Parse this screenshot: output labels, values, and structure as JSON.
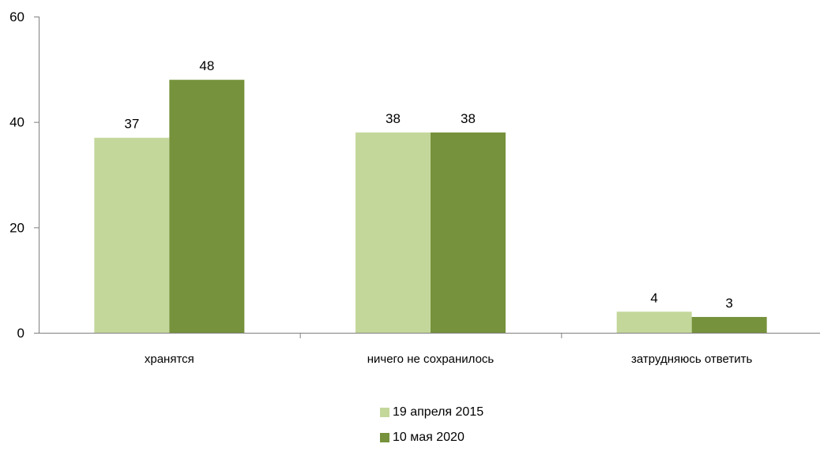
{
  "chart_data": {
    "type": "bar",
    "categories": [
      "хранятся",
      "ничего не сохранилось",
      "затрудняюсь ответить"
    ],
    "series": [
      {
        "name": "19 апреля 2015",
        "values": [
          37,
          38,
          4
        ],
        "labels": [
          "37",
          "38",
          "4"
        ],
        "color": "#c4d79b"
      },
      {
        "name": "10 мая 2020",
        "values": [
          48,
          38,
          3
        ],
        "labels": [
          "48",
          "38",
          "3"
        ],
        "color": "#76923c"
      }
    ],
    "yticks": [
      "0",
      "20",
      "40",
      "60"
    ],
    "ylim": [
      0,
      60
    ],
    "grid": false,
    "legend_position": "bottom-center"
  }
}
